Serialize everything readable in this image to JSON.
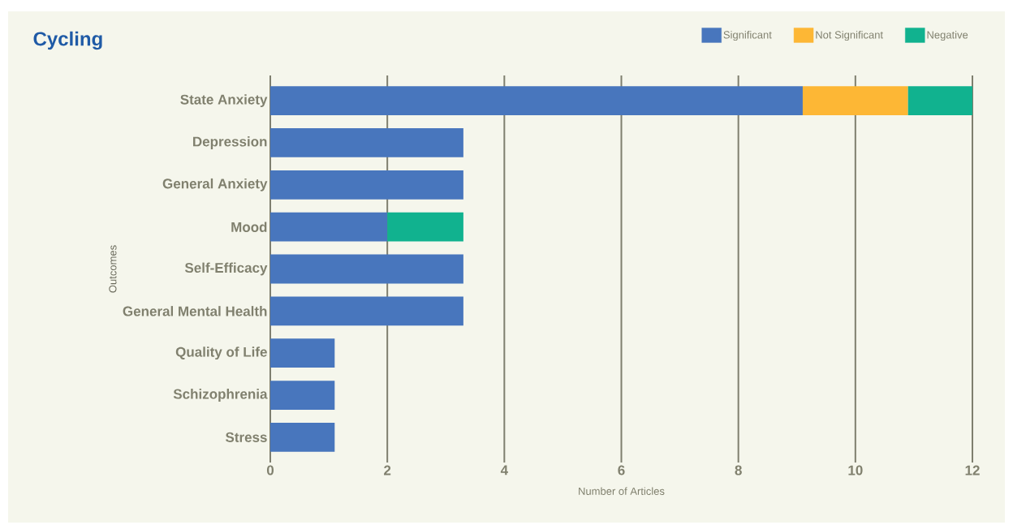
{
  "chart_data": {
    "type": "bar",
    "orientation": "horizontal",
    "stacked": true,
    "title": "Cycling",
    "xlabel": "Number of Articles",
    "ylabel": "Outcomes",
    "categories": [
      "State Anxiety",
      "Depression",
      "General Anxiety",
      "Mood",
      "Self-Efficacy",
      "General Mental Health",
      "Quality of Life",
      "Schizophrenia",
      "Stress"
    ],
    "series": [
      {
        "name": "Significant",
        "color": "#4876bd",
        "values": [
          9.1,
          3.3,
          3.3,
          2.0,
          3.3,
          3.3,
          1.1,
          1.1,
          1.1
        ]
      },
      {
        "name": "Not Significant",
        "color": "#fdb735",
        "values": [
          1.8,
          null,
          null,
          null,
          null,
          null,
          null,
          null,
          null
        ]
      },
      {
        "name": "Negative",
        "color": "#11b28f",
        "values": [
          1.1,
          null,
          null,
          1.3,
          null,
          null,
          null,
          null,
          null
        ]
      }
    ],
    "xlim": [
      0,
      12
    ],
    "xticks": [
      0,
      2,
      4,
      6,
      8,
      10,
      12
    ],
    "grid": "x",
    "legend": "top right"
  }
}
